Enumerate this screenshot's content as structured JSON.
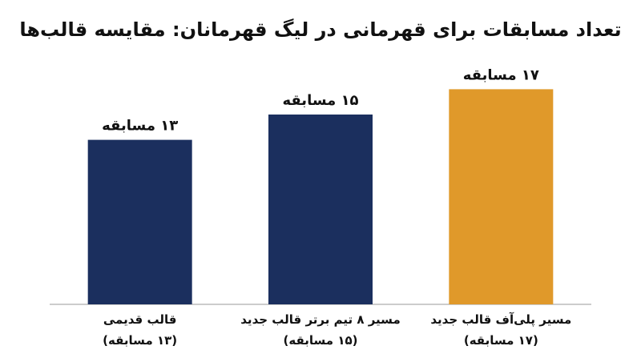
{
  "chart_data": {
    "type": "bar",
    "title": "تعداد مسابقات برای قهرمانی در لیگ قهرمانان: مقایسه قالب‌ها",
    "categories": [
      "قالب قدیمی\n(۱۳ مسابقه)",
      "مسیر ۸ تیم برتر قالب جدید\n(۱۵ مسابقه)",
      "مسیر پلی‌آف قالب جدید\n(۱۷ مسابقه)"
    ],
    "values": [
      13,
      15,
      17
    ],
    "value_labels": [
      "۱۳ مسابقه",
      "۱۵ مسابقه",
      "۱۷ مسابقه"
    ],
    "colors": [
      "#1b2f5e",
      "#1b2f5e",
      "#e0992a"
    ],
    "ylim": [
      0,
      20
    ]
  }
}
